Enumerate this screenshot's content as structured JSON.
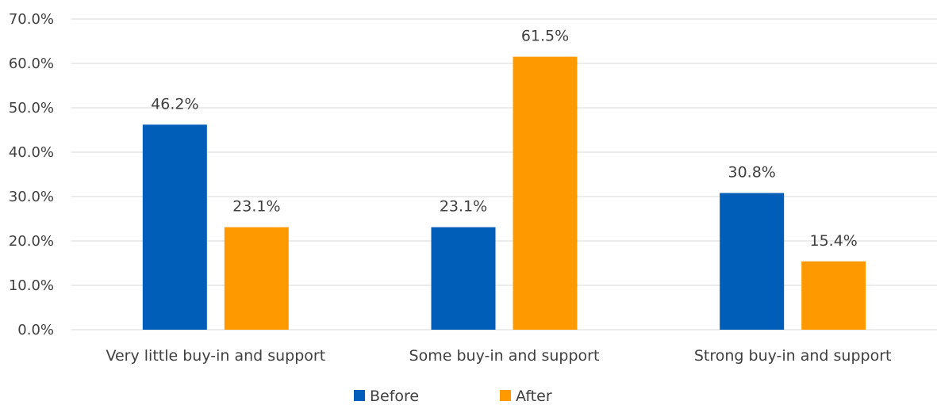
{
  "chart_data": {
    "type": "bar",
    "categories": [
      "Very little buy-in and support",
      "Some buy-in and support",
      "Strong buy-in and support"
    ],
    "series": [
      {
        "name": "Before",
        "values": [
          46.2,
          23.1,
          30.8
        ],
        "labels": [
          "46.2%",
          "23.1%",
          "30.8%"
        ],
        "color": "#005EB8"
      },
      {
        "name": "After",
        "values": [
          23.1,
          61.5,
          15.4
        ],
        "labels": [
          "23.1%",
          "61.5%",
          "15.4%"
        ],
        "color": "#FF9900"
      }
    ],
    "ylim": [
      0,
      70
    ],
    "yticks": [
      "0.0%",
      "10.0%",
      "20.0%",
      "30.0%",
      "40.0%",
      "50.0%",
      "60.0%",
      "70.0%"
    ],
    "grid": true,
    "legend": "bottom",
    "title": "",
    "xlabel": "",
    "ylabel": ""
  }
}
